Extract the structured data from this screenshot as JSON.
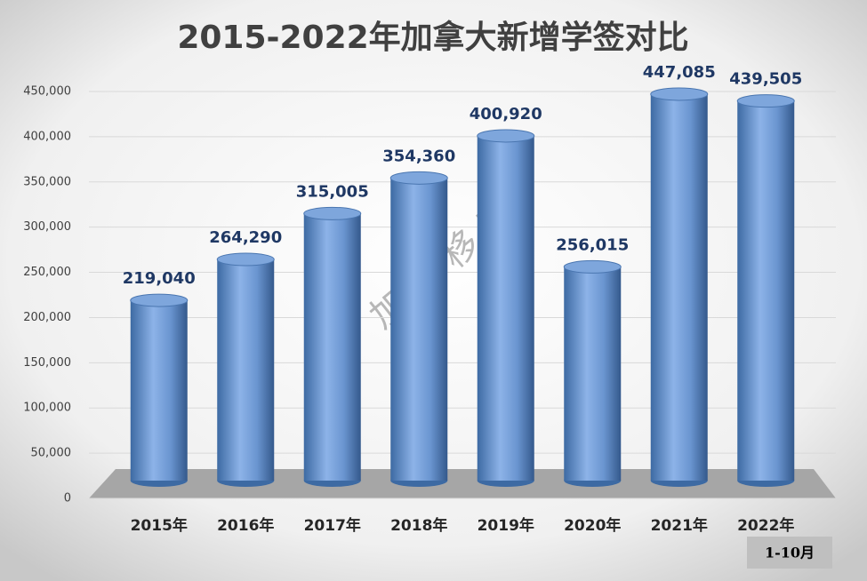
{
  "chart_data": {
    "type": "bar3d",
    "title": "2015-2022年加拿大新增学签对比",
    "categories": [
      "2015年",
      "2016年",
      "2017年",
      "2018年",
      "2019年",
      "2020年",
      "2021年",
      "2022年"
    ],
    "values": [
      219040,
      264290,
      315005,
      354360,
      400920,
      256015,
      447085,
      439505
    ],
    "value_labels": [
      "219,040",
      "264,290",
      "315,005",
      "354,360",
      "400,920",
      "256,015",
      "447,085",
      "439,505"
    ],
    "color": "#4f81bd",
    "ylim": [
      0,
      450000
    ],
    "yticks": [
      0,
      {
        "value": 50000,
        "label": "50,000"
      },
      {
        "value": 100000,
        "label": "100,000"
      },
      {
        "value": 150000,
        "label": "150,000"
      },
      {
        "value": 200000,
        "label": "200,000"
      },
      {
        "value": 250000,
        "label": "250,000"
      },
      {
        "value": 300000,
        "label": "300,000"
      },
      {
        "value": 350000,
        "label": "350,000"
      },
      {
        "value": 400000,
        "label": "400,000"
      },
      {
        "value": 450000,
        "label": "450,000"
      }
    ],
    "grid": true,
    "annotations": [
      "加 美 移 民",
      "1-10月"
    ]
  }
}
